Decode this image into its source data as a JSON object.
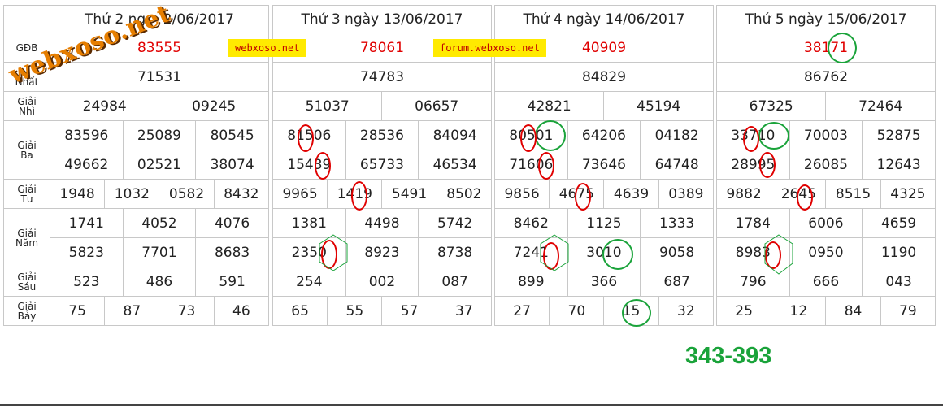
{
  "labels": {
    "db": "GĐB",
    "nhat_1": "",
    "nhat_2": "Nhất",
    "nhi_1": "Giải",
    "nhi_2": "Nhì",
    "ba_1": "Giải",
    "ba_2": "Ba",
    "tu_1": "Giải",
    "tu_2": "Tư",
    "nam_1": "Giải",
    "nam_2": "Năm",
    "sau_1": "Giải",
    "sau_2": "Sáu",
    "bay_1": "Giải",
    "bay_2": "Bảy"
  },
  "days": [
    {
      "title": "Thứ 2 ng    2/06/2017",
      "db": "83555",
      "nhat": "71531",
      "nhi": [
        "24984",
        "09245"
      ],
      "ba": [
        "83596",
        "25089",
        "80545",
        "49662",
        "02521",
        "38074"
      ],
      "tu": [
        "1948",
        "1032",
        "0582",
        "8432"
      ],
      "nam": [
        "1741",
        "4052",
        "4076",
        "5823",
        "7701",
        "8683"
      ],
      "sau": [
        "523",
        "486",
        "591"
      ],
      "bay": [
        "75",
        "87",
        "73",
        "46"
      ]
    },
    {
      "title": "Thứ 3 ngày 13/06/2017",
      "db": "78061",
      "nhat": "74783",
      "nhi": [
        "51037",
        "06657"
      ],
      "ba": [
        "81506",
        "28536",
        "84094",
        "15439",
        "65733",
        "46534"
      ],
      "tu": [
        "9965",
        "1419",
        "5491",
        "8502"
      ],
      "nam": [
        "1381",
        "4498",
        "5742",
        "2350",
        "8923",
        "8738"
      ],
      "sau": [
        "254",
        "002",
        "087"
      ],
      "bay": [
        "65",
        "55",
        "57",
        "37"
      ]
    },
    {
      "title": "Thứ 4 ngày 14/06/2017",
      "db": "40909",
      "nhat": "84829",
      "nhi": [
        "42821",
        "45194"
      ],
      "ba": [
        "80501",
        "64206",
        "04182",
        "71606",
        "73646",
        "64748"
      ],
      "tu": [
        "9856",
        "4675",
        "4639",
        "0389"
      ],
      "nam": [
        "8462",
        "1125",
        "1333",
        "7241",
        "3010",
        "9058"
      ],
      "sau": [
        "899",
        "366",
        "687"
      ],
      "bay": [
        "27",
        "70",
        "15",
        "32"
      ]
    },
    {
      "title": "Thứ 5 ngày 15/06/2017",
      "db": "38171",
      "nhat": "86762",
      "nhi": [
        "67325",
        "72464"
      ],
      "ba": [
        "33710",
        "70003",
        "52875",
        "28995",
        "26085",
        "12643"
      ],
      "tu": [
        "9882",
        "2645",
        "8515",
        "4325"
      ],
      "nam": [
        "1784",
        "6006",
        "4659",
        "8983",
        "0950",
        "1190"
      ],
      "sau": [
        "796",
        "666",
        "043"
      ],
      "bay": [
        "25",
        "12",
        "84",
        "79"
      ]
    }
  ],
  "ads": {
    "left": "webxoso.net",
    "right": "forum.webxoso.net"
  },
  "watermark": "webxoso.net",
  "result": "343-393",
  "colors": {
    "special": "#e00000",
    "ring_green": "#1aa33a",
    "ad_bg": "#ffea00",
    "watermark": "#e67e00"
  }
}
